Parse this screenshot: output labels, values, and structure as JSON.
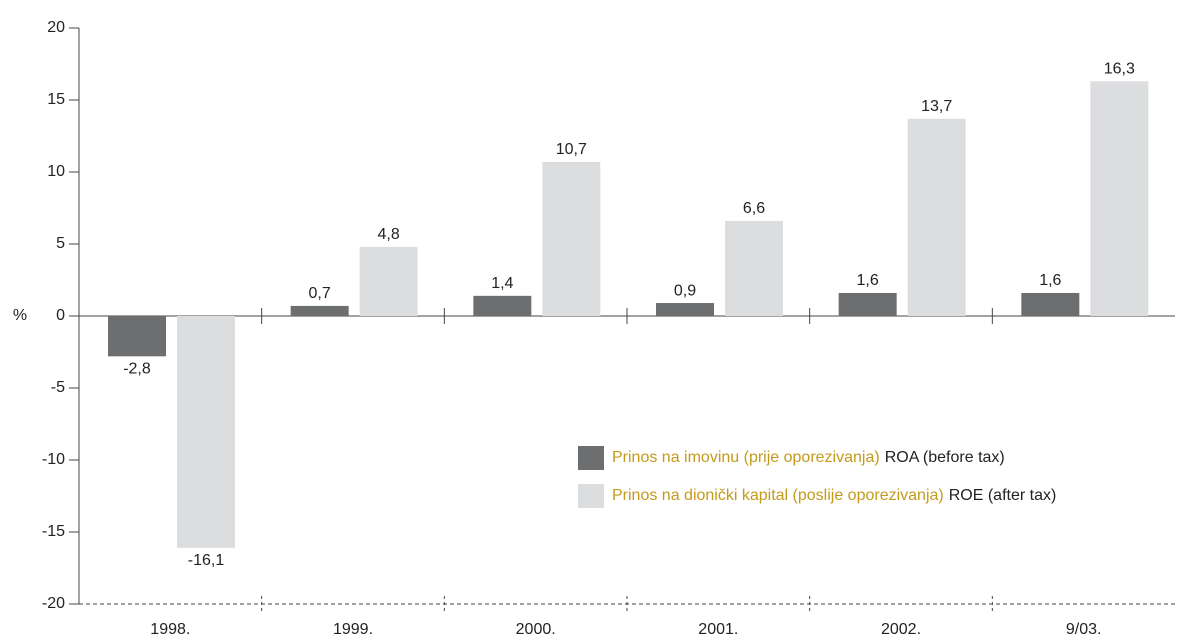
{
  "chart_data": {
    "type": "bar",
    "y_label": "%",
    "categories": [
      "1998.",
      "1999.",
      "2000.",
      "2001.",
      "2002.",
      "9/03."
    ],
    "series": [
      {
        "name": "ROA (before tax)",
        "name_local": "Prinos na imovinu (prije oporezivanja)",
        "color": "#6d6e70",
        "values": [
          -2.8,
          0.7,
          1.4,
          0.9,
          1.6,
          1.6
        ],
        "value_labels": [
          "-2,8",
          "0,7",
          "1,4",
          "0,9",
          "1,6",
          "1,6"
        ]
      },
      {
        "name": "ROE (after tax)",
        "name_local": "Prinos na dionički kapital (poslije oporezivanja)",
        "color": "#dcdddf",
        "values": [
          -16.1,
          4.8,
          10.7,
          6.6,
          13.7,
          16.3
        ],
        "value_labels": [
          "-16,1",
          "4,8",
          "10,7",
          "6,6",
          "13,7",
          "16,3"
        ]
      }
    ],
    "legend_local_color": "#c49a1c",
    "ylim": [
      -20,
      20
    ],
    "yticks": [
      20,
      15,
      10,
      5,
      0,
      -5,
      -10,
      -15,
      -20
    ]
  }
}
